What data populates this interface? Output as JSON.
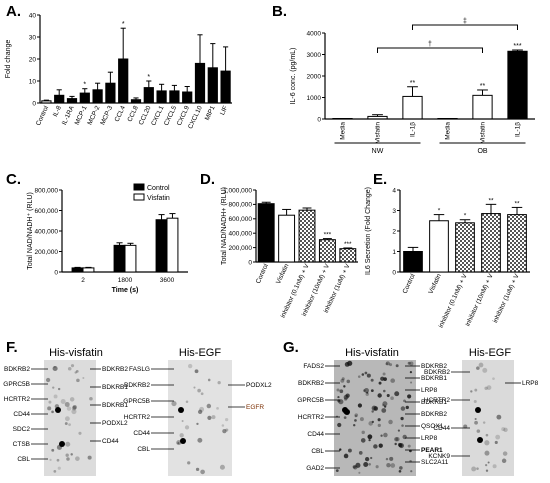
{
  "panels": [
    "A.",
    "B.",
    "C.",
    "D.",
    "E.",
    "F.",
    "G."
  ],
  "colors": {
    "bar_black": "#000000",
    "bar_grey": "#d9d9d9",
    "bar_white": "#ffffff",
    "blot_bg": "#d8d8d8"
  },
  "chart_data": [
    {
      "panel": "A.",
      "type": "bar",
      "ylabel": "Fold change",
      "ylim": [
        0,
        40
      ],
      "yticks": [
        "0",
        "10",
        "20",
        "30",
        "40"
      ],
      "categories": [
        "Control",
        "IL-8",
        "IL-1RA",
        "MCP-1",
        "MCP-2",
        "MCP-3",
        "CCL4",
        "CCL8",
        "CCL20",
        "CXCL1",
        "CXCL5",
        "CXCL9",
        "CXCL10",
        "MIP1",
        "LIF"
      ],
      "values": [
        1,
        3.5,
        2,
        4.5,
        6,
        9,
        20,
        1.5,
        7,
        5.5,
        5.5,
        5,
        18,
        16,
        14.5
      ],
      "errors": [
        0.3,
        2.5,
        1,
        2,
        3,
        5,
        14,
        0.8,
        3,
        3,
        2.5,
        2.5,
        13,
        11,
        11
      ],
      "annotations": [
        "",
        "",
        "",
        "*",
        "",
        "",
        "*",
        "",
        "*",
        "",
        "",
        "",
        "",
        "",
        ""
      ]
    },
    {
      "panel": "B.",
      "type": "bar",
      "ylabel": "IL-6 conc. (pg/mL)",
      "ylim": [
        0,
        4000
      ],
      "yticks": [
        "0",
        "1000",
        "2000",
        "3000",
        "4000"
      ],
      "categories": [
        "Media",
        "Visfatin",
        "IL-1β",
        "Media",
        "Visfatin",
        "IL-1β"
      ],
      "groups": [
        "NW",
        "OB"
      ],
      "values": [
        0,
        120,
        1050,
        0,
        1100,
        3150
      ],
      "errors": [
        0,
        80,
        450,
        0,
        250,
        60
      ],
      "annotations": [
        "",
        "",
        "**",
        "",
        "**",
        "***"
      ],
      "brackets": [
        "†",
        "‡"
      ]
    },
    {
      "panel": "C.",
      "type": "bar",
      "xlabel": "Time (s)",
      "ylabel": "Total NAD/NADH⁺ (RLU)",
      "ylim": [
        0,
        800000
      ],
      "yticks": [
        "0",
        "200,000",
        "400,000",
        "600,000",
        "800,000"
      ],
      "categories": [
        "2",
        "1800",
        "3600"
      ],
      "series": [
        {
          "name": "Control",
          "values": [
            40000,
            260000,
            510000
          ],
          "errors": [
            5000,
            25000,
            50000
          ]
        },
        {
          "name": "Visfatin",
          "values": [
            40000,
            260000,
            525000
          ],
          "errors": [
            5000,
            20000,
            45000
          ]
        }
      ]
    },
    {
      "panel": "D.",
      "type": "bar",
      "ylabel": "Total NAD/NADH+ (RLU)",
      "ylim": [
        0,
        1000000
      ],
      "yticks": [
        "0",
        "200,000",
        "400,000",
        "600,000",
        "800,000",
        "1,000,000"
      ],
      "categories": [
        "Control",
        "Visfatin",
        "inhibitor (0.1nM) + V",
        "inhibitor (10nM) + V",
        "inhibitor (1uM) + V"
      ],
      "values": [
        810000,
        650000,
        720000,
        310000,
        185000
      ],
      "errors": [
        20000,
        80000,
        30000,
        15000,
        10000
      ],
      "annotations": [
        "",
        "",
        "",
        "***",
        "***"
      ]
    },
    {
      "panel": "E.",
      "type": "bar",
      "ylabel": "IL6 Secretion (Fold Change)",
      "ylim": [
        0,
        4
      ],
      "yticks": [
        "0",
        "1",
        "2",
        "3",
        "4"
      ],
      "categories": [
        "Control",
        "Visfatin",
        "inhibitor (0.1nM) + V",
        "inhibitor (10nM) + V",
        "inhibitor (1uM) + V"
      ],
      "values": [
        1,
        2.5,
        2.4,
        2.85,
        2.8
      ],
      "errors": [
        0.2,
        0.3,
        0.15,
        0.45,
        0.35
      ],
      "annotations": [
        "",
        "*",
        "*",
        "**",
        "**"
      ]
    }
  ],
  "blots": {
    "F": {
      "left": {
        "title": "His-visfatin",
        "labels_left": [
          "BDKRB2",
          "GPRC5B",
          "HCRTR2",
          "CD44",
          "SDC2",
          "CTSB",
          "CBL"
        ],
        "labels_right": [
          "BDKRB2",
          "BDKRB1",
          "BDKRB1",
          "PODXL2",
          "CD44"
        ]
      },
      "right": {
        "title": "His-EGF",
        "labels_left": [
          "FASLG",
          "BDKRB2",
          "GPRC5B",
          "HCRTR2",
          "CD44",
          "CBL"
        ],
        "labels_right": [
          "PODXL2",
          "EGFR"
        ]
      }
    },
    "G": {
      "left": {
        "title": "His-visfatin",
        "labels_left": [
          "FADS2",
          "BDKRB2",
          "GPRC5B",
          "HCRTR2",
          "CD44",
          "CBL",
          "GAD2"
        ],
        "labels_right": [
          "BDKRB2",
          "BDKRB1",
          "LRP8",
          "BDKRB1",
          "BDKRB2",
          "QSOX1",
          "LRP8",
          "PEAR1",
          "SLC2A11"
        ]
      },
      "right": {
        "title": "His-EGF",
        "labels_left": [
          "BDKRB2",
          "HCRTR2",
          "CD44",
          "KCNK9"
        ],
        "labels_right": [
          "LRP8"
        ]
      }
    }
  }
}
